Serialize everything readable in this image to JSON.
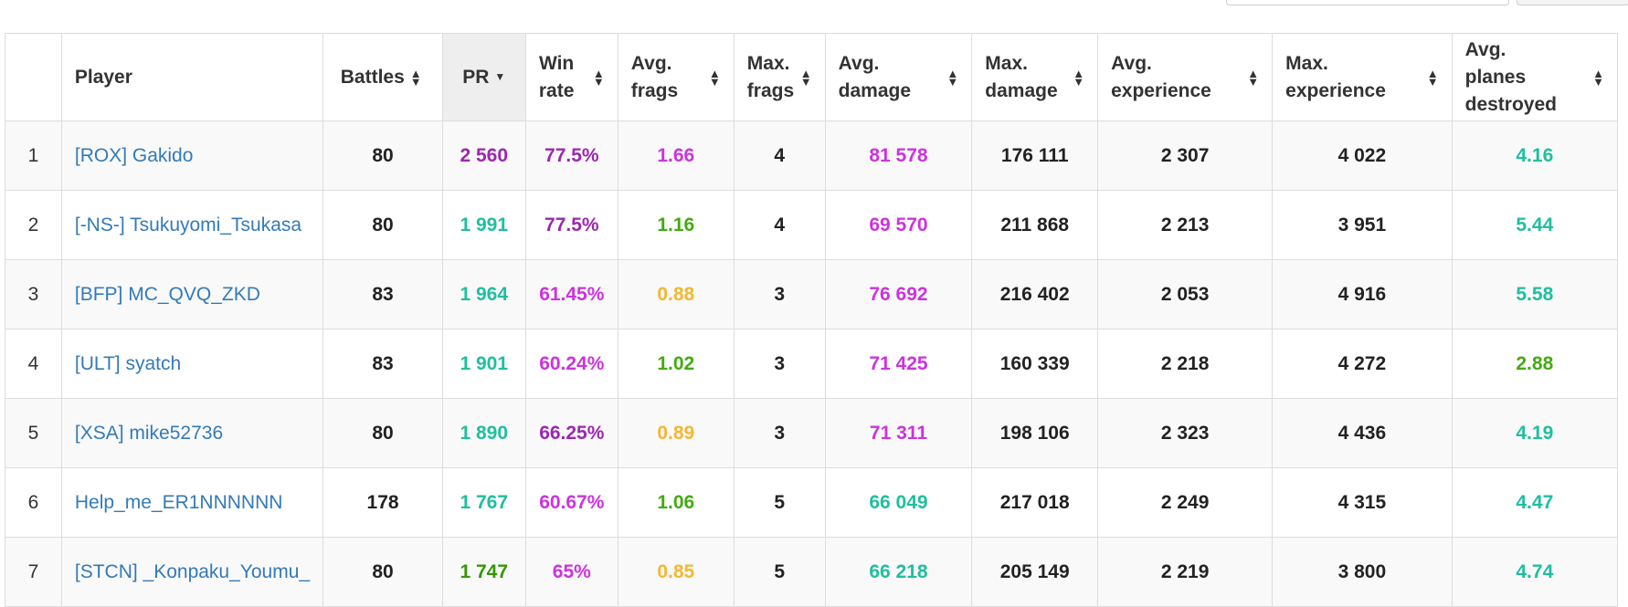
{
  "headers": {
    "rank": "",
    "player": "Player",
    "battles": "Battles",
    "pr": "PR",
    "win_rate": [
      "Win",
      "rate"
    ],
    "avg_frags": [
      "Avg.",
      "frags"
    ],
    "max_frags": [
      "Max.",
      "frags"
    ],
    "avg_damage": [
      "Avg.",
      "damage"
    ],
    "max_damage": [
      "Max.",
      "damage"
    ],
    "avg_experience": [
      "Avg.",
      "experience"
    ],
    "max_experience": [
      "Max.",
      "experience"
    ],
    "avg_planes": [
      "Avg.",
      "planes",
      "destroyed"
    ]
  },
  "sort_icons": {
    "sortable": "sort-both-icon",
    "active": "sort-desc-icon"
  },
  "colors": {
    "purple": "#9c27b0",
    "magenta": "#cc33dd",
    "teal": "#1fbf9e",
    "green": "#44aa11",
    "orange": "#f5b731",
    "link": "#337ab7",
    "text": "#222222"
  },
  "rows": [
    {
      "rank": "1",
      "player": "[ROX] Gakido",
      "battles": "80",
      "pr": "2 560",
      "pr_c": "purple",
      "win": "77.5%",
      "win_c": "purple",
      "avg_frags": "1.66",
      "af_c": "magenta",
      "max_frags": "4",
      "avg_damage": "81 578",
      "ad_c": "magenta",
      "max_damage": "176 111",
      "avg_exp": "2 307",
      "max_exp": "4 022",
      "planes": "4.16",
      "pl_c": "teal"
    },
    {
      "rank": "2",
      "player": "[-NS-] Tsukuyomi_Tsukasa",
      "battles": "80",
      "pr": "1 991",
      "pr_c": "teal",
      "win": "77.5%",
      "win_c": "purple",
      "avg_frags": "1.16",
      "af_c": "green",
      "max_frags": "4",
      "avg_damage": "69 570",
      "ad_c": "magenta",
      "max_damage": "211 868",
      "avg_exp": "2 213",
      "max_exp": "3 951",
      "planes": "5.44",
      "pl_c": "teal"
    },
    {
      "rank": "3",
      "player": "[BFP] MC_QVQ_ZKD",
      "battles": "83",
      "pr": "1 964",
      "pr_c": "teal",
      "win": "61.45%",
      "win_c": "magenta",
      "avg_frags": "0.88",
      "af_c": "orange",
      "max_frags": "3",
      "avg_damage": "76 692",
      "ad_c": "magenta",
      "max_damage": "216 402",
      "avg_exp": "2 053",
      "max_exp": "4 916",
      "planes": "5.58",
      "pl_c": "teal"
    },
    {
      "rank": "4",
      "player": "[ULT] syatch",
      "battles": "83",
      "pr": "1 901",
      "pr_c": "teal",
      "win": "60.24%",
      "win_c": "magenta",
      "avg_frags": "1.02",
      "af_c": "green",
      "max_frags": "3",
      "avg_damage": "71 425",
      "ad_c": "magenta",
      "max_damage": "160 339",
      "avg_exp": "2 218",
      "max_exp": "4 272",
      "planes": "2.88",
      "pl_c": "green"
    },
    {
      "rank": "5",
      "player": "[XSA] mike52736",
      "battles": "80",
      "pr": "1 890",
      "pr_c": "teal",
      "win": "66.25%",
      "win_c": "purple",
      "avg_frags": "0.89",
      "af_c": "orange",
      "max_frags": "3",
      "avg_damage": "71 311",
      "ad_c": "magenta",
      "max_damage": "198 106",
      "avg_exp": "2 323",
      "max_exp": "4 436",
      "planes": "4.19",
      "pl_c": "teal"
    },
    {
      "rank": "6",
      "player": "Help_me_ER1NNNNNN",
      "battles": "178",
      "pr": "1 767",
      "pr_c": "teal",
      "win": "60.67%",
      "win_c": "magenta",
      "avg_frags": "1.06",
      "af_c": "green",
      "max_frags": "5",
      "avg_damage": "66 049",
      "ad_c": "teal",
      "max_damage": "217 018",
      "avg_exp": "2 249",
      "max_exp": "4 315",
      "planes": "4.47",
      "pl_c": "teal"
    },
    {
      "rank": "7",
      "player": "[STCN] _Konpaku_Youmu_",
      "battles": "80",
      "pr": "1 747",
      "pr_c": "darkgreen",
      "win": "65%",
      "win_c": "magenta",
      "avg_frags": "0.85",
      "af_c": "orange",
      "max_frags": "5",
      "avg_damage": "66 218",
      "ad_c": "teal",
      "max_damage": "205 149",
      "avg_exp": "2 219",
      "max_exp": "3 800",
      "planes": "4.74",
      "pl_c": "teal"
    }
  ]
}
